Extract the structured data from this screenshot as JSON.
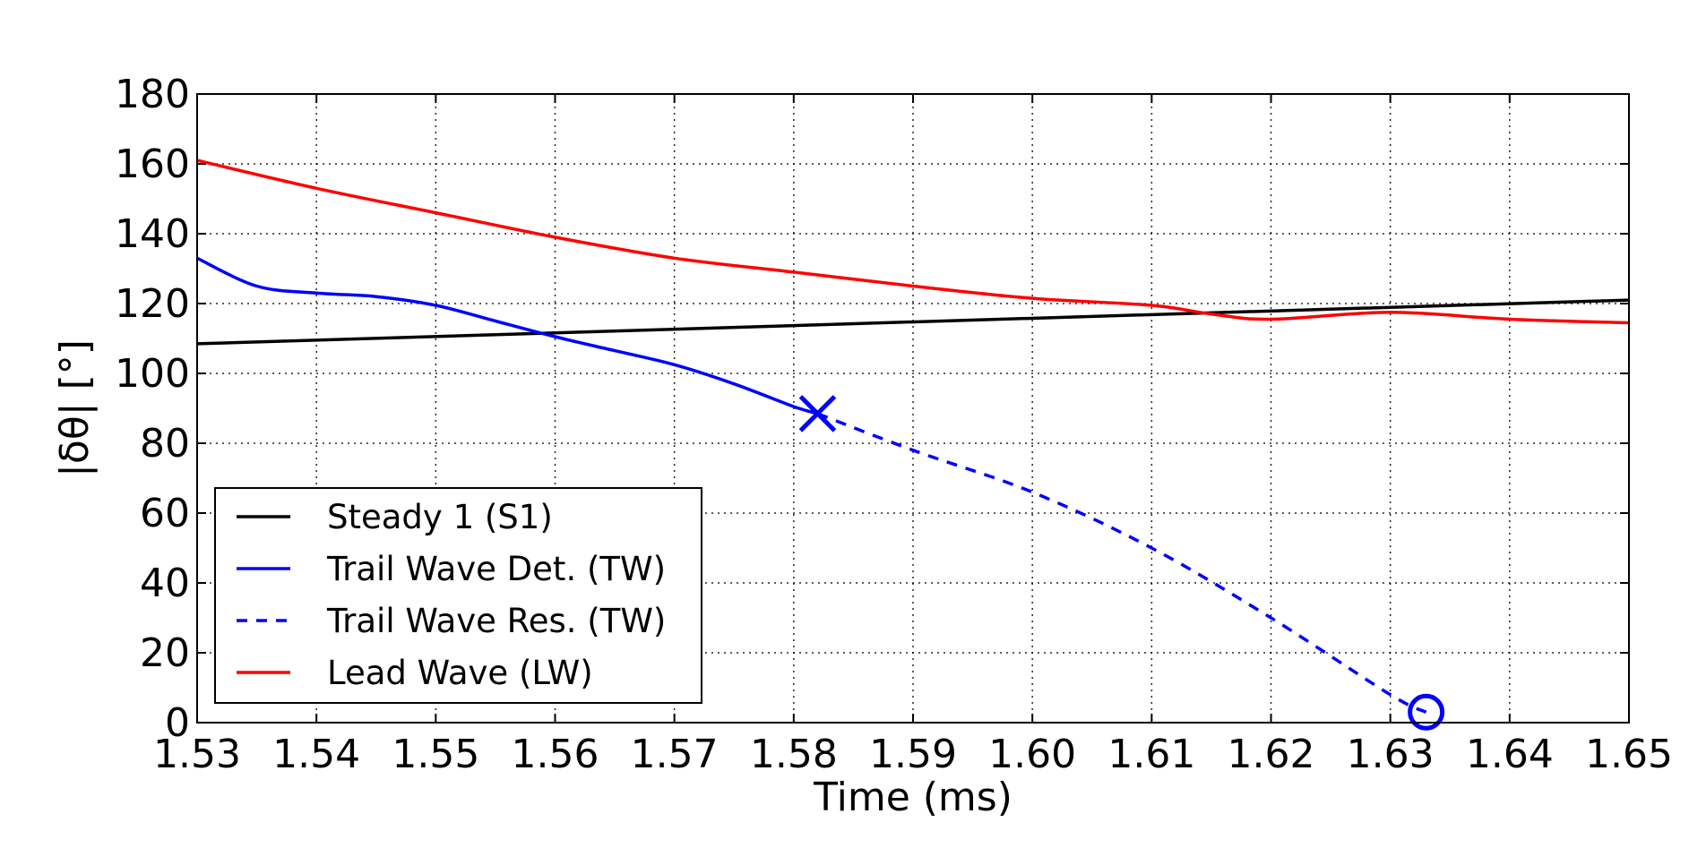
{
  "chart_data": {
    "type": "line",
    "title": "",
    "xlabel": "Time (ms)",
    "ylabel": "|δθ| [°]",
    "xlim": [
      1.53,
      1.65
    ],
    "ylim": [
      0,
      180
    ],
    "xticks": [
      1.53,
      1.54,
      1.55,
      1.56,
      1.57,
      1.58,
      1.59,
      1.6,
      1.61,
      1.62,
      1.63,
      1.64,
      1.65
    ],
    "xtick_labels": [
      "1.53",
      "1.54",
      "1.55",
      "1.56",
      "1.57",
      "1.58",
      "1.59",
      "1.60",
      "1.61",
      "1.62",
      "1.63",
      "1.64",
      "1.65"
    ],
    "yticks": [
      0,
      20,
      40,
      60,
      80,
      100,
      120,
      140,
      160,
      180
    ],
    "ytick_labels": [
      "0",
      "20",
      "40",
      "60",
      "80",
      "100",
      "120",
      "140",
      "160",
      "180"
    ],
    "grid": true,
    "legend_position": "lower-left",
    "series": [
      {
        "name": "Steady 1 (S1)",
        "color": "#000000",
        "style": "solid",
        "x": [
          1.53,
          1.65
        ],
        "y": [
          108.5,
          121
        ]
      },
      {
        "name": "Trail Wave Det. (TW)",
        "color": "#0000ff",
        "style": "solid",
        "x": [
          1.53,
          1.535,
          1.54,
          1.545,
          1.55,
          1.555,
          1.56,
          1.565,
          1.57,
          1.575,
          1.58,
          1.582
        ],
        "y": [
          133,
          125,
          123,
          122,
          119.5,
          115,
          110.5,
          106.5,
          102.5,
          97,
          90.5,
          88.5
        ]
      },
      {
        "name": "Trail Wave Res. (TW)",
        "color": "#0000ff",
        "style": "dashed",
        "x": [
          1.582,
          1.59,
          1.6,
          1.61,
          1.62,
          1.63,
          1.633
        ],
        "y": [
          88.5,
          78,
          66,
          50,
          30,
          8,
          3
        ]
      },
      {
        "name": "Lead Wave (LW)",
        "color": "#ff0000",
        "style": "solid",
        "x": [
          1.53,
          1.54,
          1.55,
          1.56,
          1.57,
          1.58,
          1.59,
          1.6,
          1.61,
          1.615,
          1.62,
          1.63,
          1.64,
          1.65
        ],
        "y": [
          161,
          153,
          146,
          139,
          133,
          129,
          125,
          121.5,
          119.5,
          117,
          115.5,
          117.5,
          115.5,
          114.5
        ]
      }
    ],
    "markers": [
      {
        "name": "TW detection",
        "symbol": "x",
        "color": "#0000ff",
        "x": 1.582,
        "y": 88.5
      },
      {
        "name": "TW end",
        "symbol": "o",
        "color": "#0000ff",
        "x": 1.633,
        "y": 3
      }
    ]
  }
}
